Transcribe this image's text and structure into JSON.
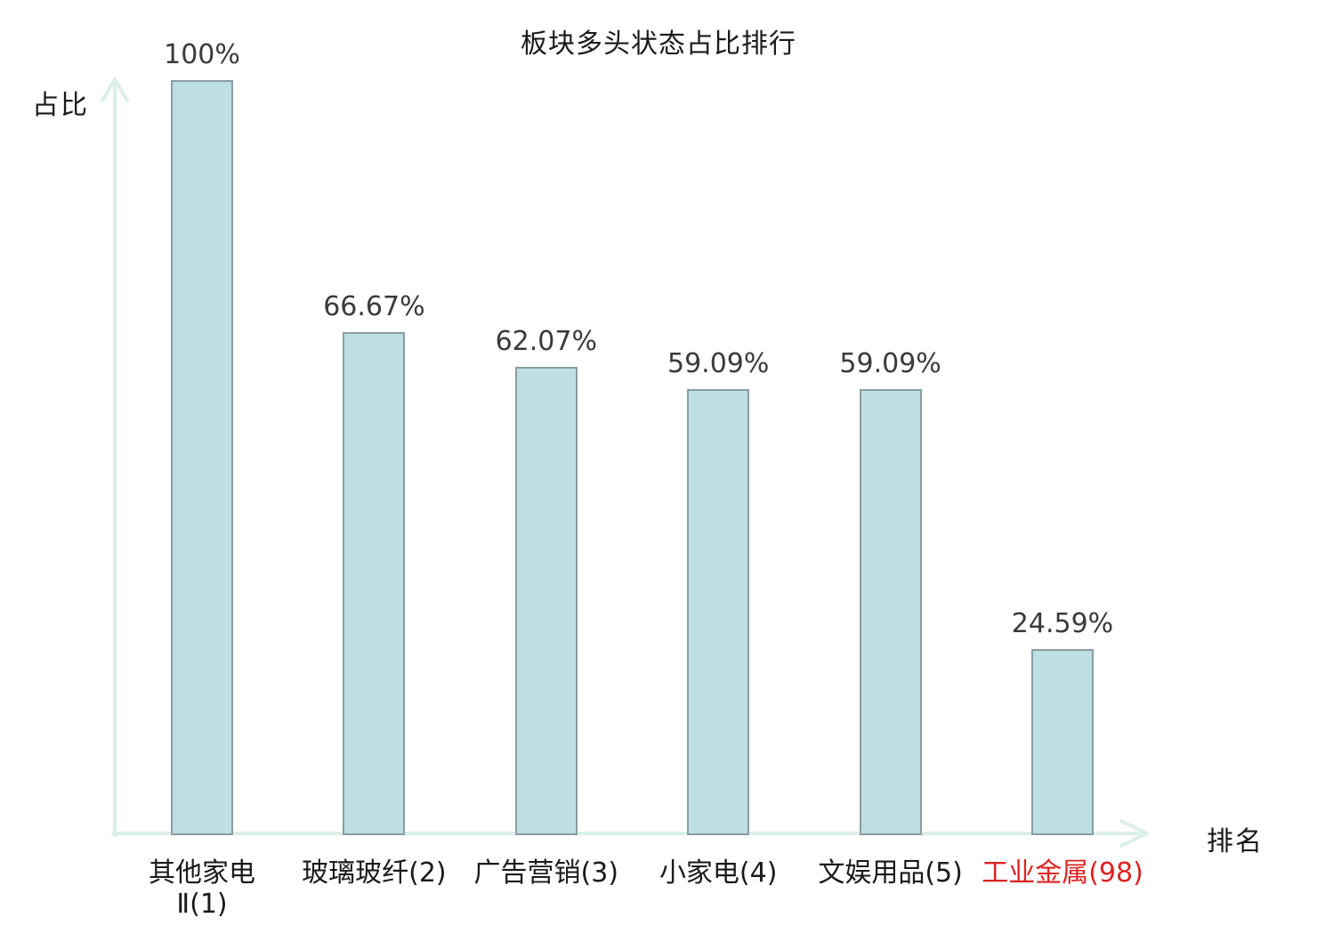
{
  "chart_data": {
    "type": "bar",
    "title": "板块多头状态占比排行",
    "xlabel": "排名",
    "ylabel": "占比",
    "categories": [
      "其他家电Ⅱ(1)",
      "玻璃玻纤(2)",
      "广告营销(3)",
      "小家电(4)",
      "文娱用品(5)",
      "工业金属(98)"
    ],
    "category_lines": [
      [
        "其他家电",
        "Ⅱ(1)"
      ],
      [
        "玻璃玻纤(2)"
      ],
      [
        "广告营销(3)"
      ],
      [
        "小家电(4)"
      ],
      [
        "文娱用品(5)"
      ],
      [
        "工业金属(98)"
      ]
    ],
    "values": [
      100,
      66.67,
      62.07,
      59.09,
      59.09,
      24.59
    ],
    "value_labels": [
      "100%",
      "66.67%",
      "62.07%",
      "59.09%",
      "59.09%",
      "24.59%"
    ],
    "highlight_index": 5,
    "ylim": [
      0,
      100
    ],
    "grid": false,
    "legend": null,
    "colors": {
      "bar_fill": "#bddfe3",
      "bar_border": "#8a9da2",
      "axis": "#dcefe9",
      "value_label": "#3a3a3a",
      "category_label": "#1a1a1a",
      "highlight": "#dd2222",
      "background": "#ffffff"
    }
  }
}
